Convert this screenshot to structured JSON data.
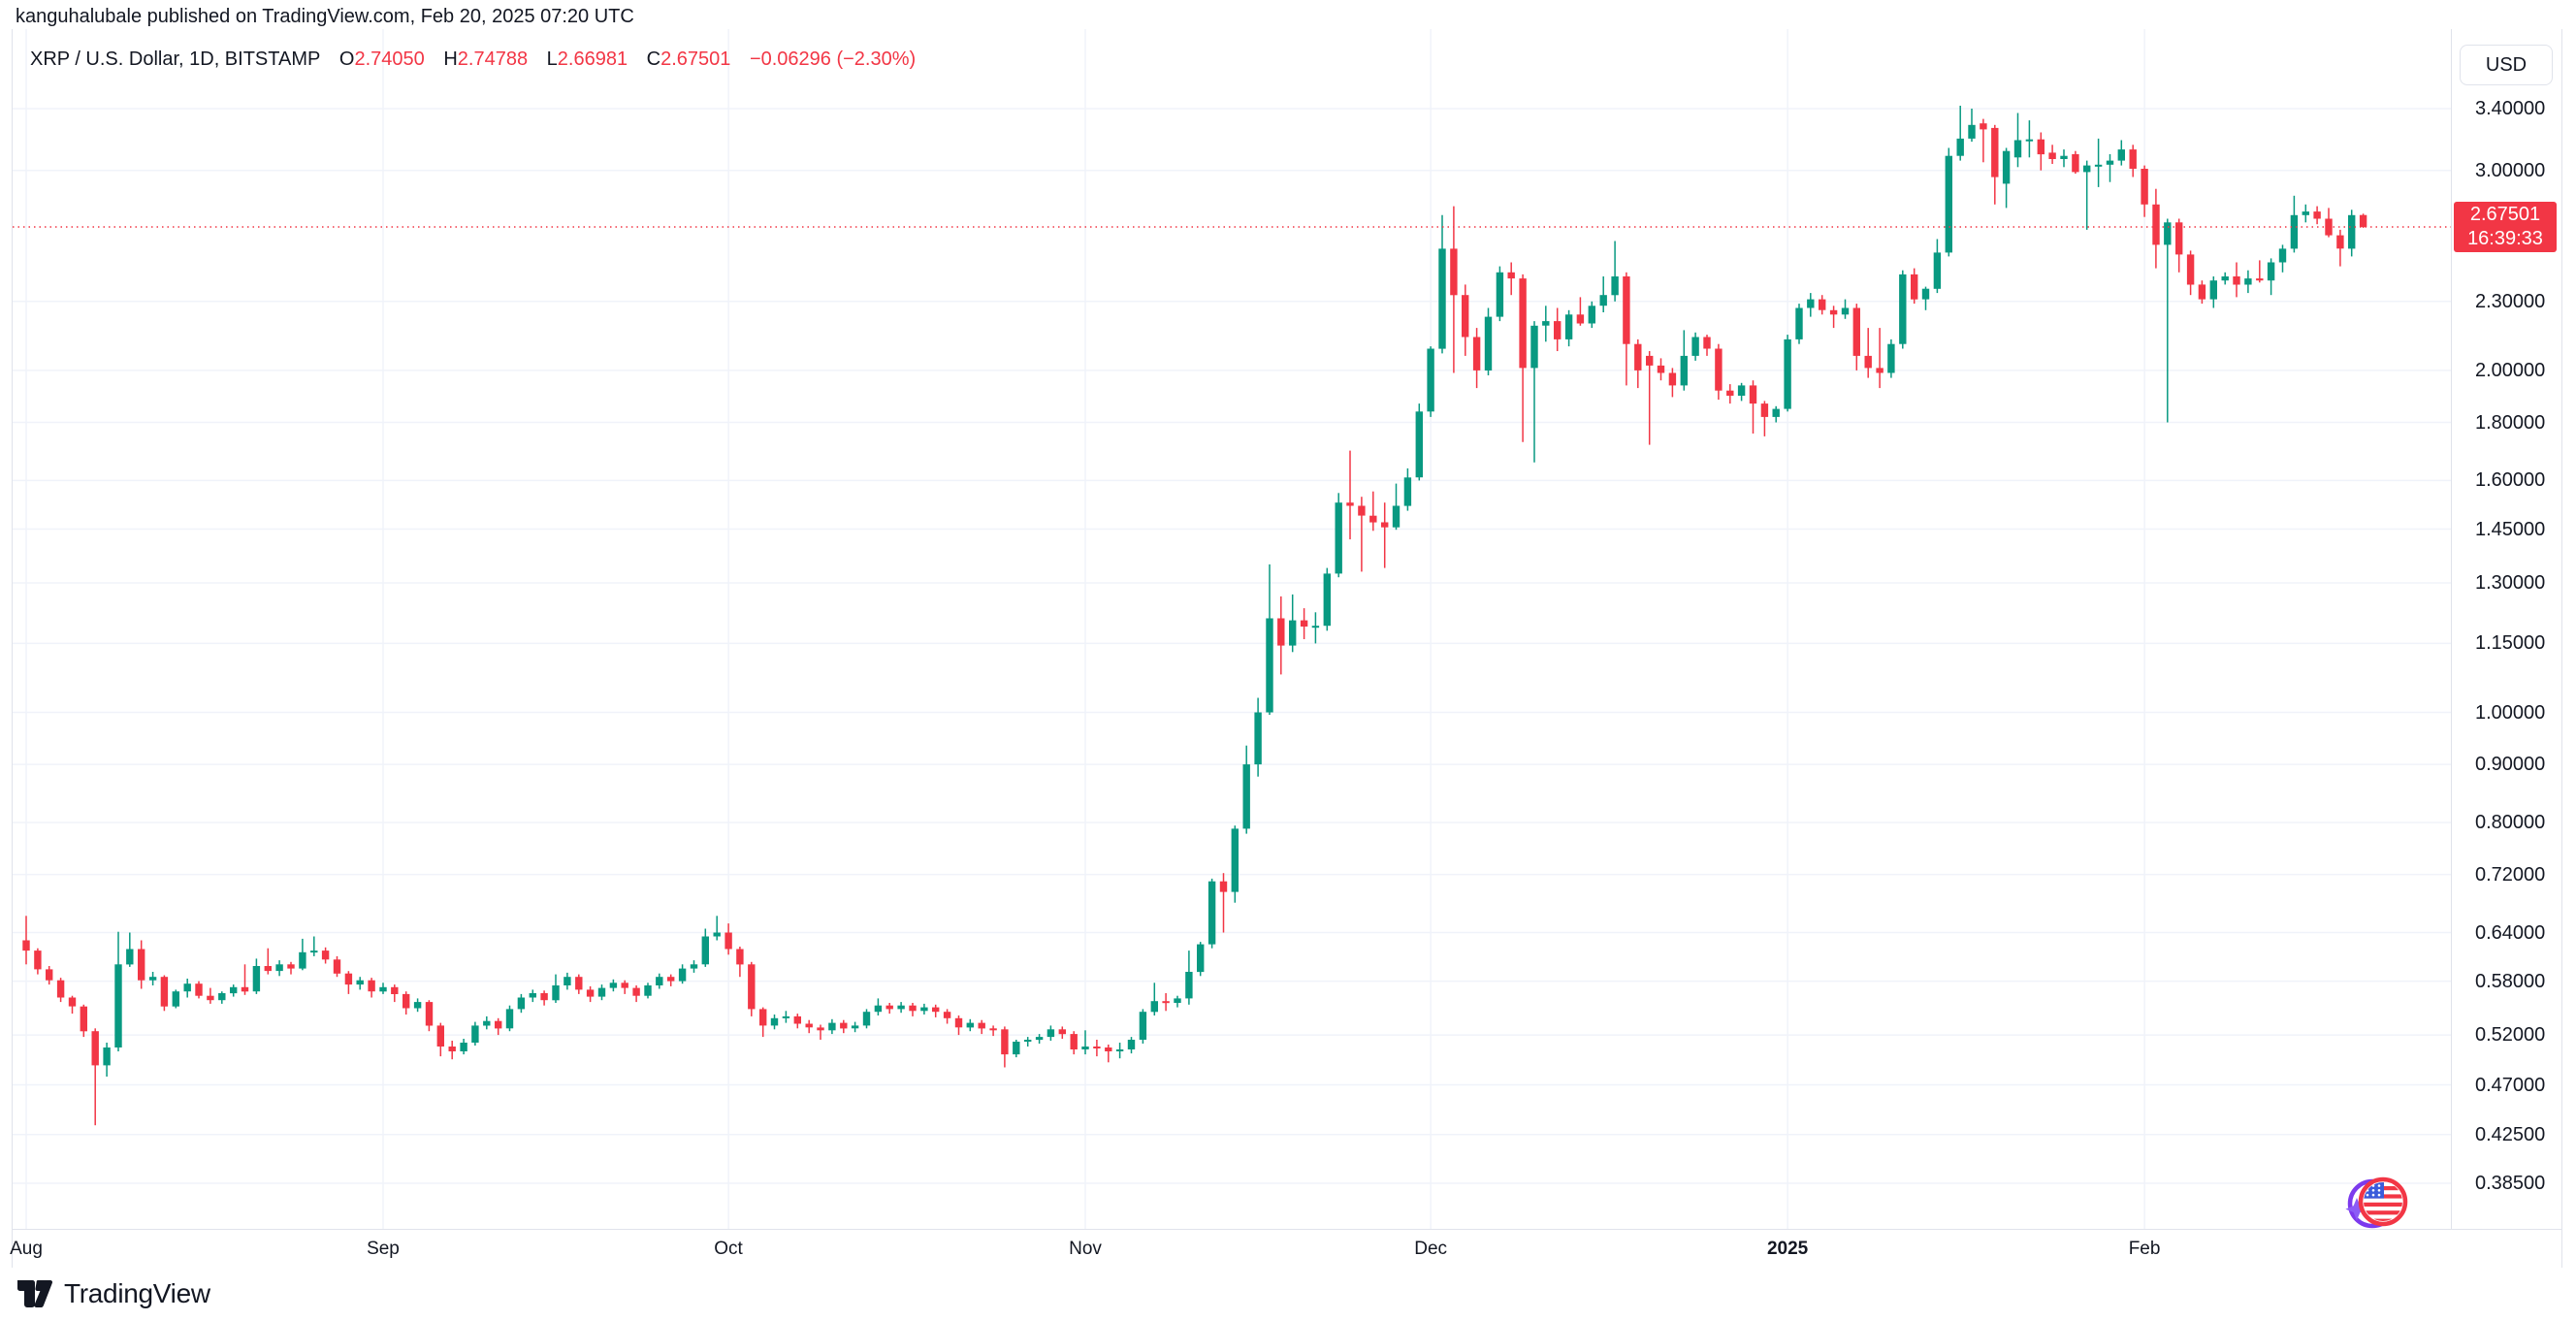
{
  "header": {
    "attribution": "kanguhalubale published on TradingView.com, Feb 20, 2025 07:20 UTC"
  },
  "chart_header": {
    "symbol_title": "XRP / U.S. Dollar, 1D, BITSTAMP",
    "open_label": "O",
    "open": "2.74050",
    "high_label": "H",
    "high": "2.74788",
    "low_label": "L",
    "low": "2.66981",
    "close_label": "C",
    "close": "2.67501",
    "change": "−0.06296 (−2.30%)"
  },
  "price_axis": {
    "currency_label": "USD",
    "tick_labels": [
      "3.40000",
      "3.00000",
      "2.30000",
      "2.00000",
      "1.80000",
      "1.60000",
      "1.45000",
      "1.30000",
      "1.15000",
      "1.00000",
      "0.90000",
      "0.80000",
      "0.72000",
      "0.64000",
      "0.58000",
      "0.52000",
      "0.47000",
      "0.42500",
      "0.38500"
    ],
    "badge": {
      "price": "2.67501",
      "countdown": "16:39:33"
    }
  },
  "time_axis": {
    "labels": [
      {
        "text": "Aug",
        "day": 0,
        "bold": false
      },
      {
        "text": "Sep",
        "day": 31,
        "bold": false
      },
      {
        "text": "Oct",
        "day": 61,
        "bold": false
      },
      {
        "text": "Nov",
        "day": 92,
        "bold": false
      },
      {
        "text": "Dec",
        "day": 122,
        "bold": false
      },
      {
        "text": "2025",
        "day": 153,
        "bold": true
      },
      {
        "text": "Feb",
        "day": 184,
        "bold": false
      }
    ]
  },
  "footer": {
    "brand": "TradingView"
  },
  "chart_data": {
    "type": "candlestick",
    "title": "XRP / U.S. Dollar, 1D, BITSTAMP",
    "symbol": "XRP/USD",
    "interval": "1D",
    "exchange": "BITSTAMP",
    "price_scale": "log",
    "start_month": "Aug 2024",
    "end_date": "Feb 20, 2025",
    "up_color": "#089981",
    "down_color": "#f23645",
    "grid_color": "#f0f3fa",
    "last_price": 2.67501,
    "y_ticks": [
      3.4,
      3.0,
      2.3,
      2.0,
      1.8,
      1.6,
      1.45,
      1.3,
      1.15,
      1.0,
      0.9,
      0.8,
      0.72,
      0.64,
      0.58,
      0.52,
      0.47,
      0.425,
      0.385
    ],
    "ohlc_last": {
      "open": 2.7405,
      "high": 2.74788,
      "low": 2.66981,
      "close": 2.67501
    },
    "candles": [
      [
        0.63,
        0.662,
        0.6,
        0.617
      ],
      [
        0.617,
        0.62,
        0.588,
        0.594
      ],
      [
        0.594,
        0.598,
        0.576,
        0.581
      ],
      [
        0.581,
        0.584,
        0.556,
        0.561
      ],
      [
        0.561,
        0.563,
        0.543,
        0.551
      ],
      [
        0.551,
        0.553,
        0.518,
        0.524
      ],
      [
        0.524,
        0.527,
        0.433,
        0.489
      ],
      [
        0.489,
        0.512,
        0.478,
        0.507
      ],
      [
        0.507,
        0.641,
        0.503,
        0.6
      ],
      [
        0.6,
        0.64,
        0.597,
        0.619
      ],
      [
        0.619,
        0.63,
        0.571,
        0.581
      ],
      [
        0.581,
        0.591,
        0.575,
        0.585
      ],
      [
        0.585,
        0.587,
        0.546,
        0.551
      ],
      [
        0.551,
        0.57,
        0.549,
        0.568
      ],
      [
        0.568,
        0.583,
        0.561,
        0.577
      ],
      [
        0.577,
        0.58,
        0.56,
        0.563
      ],
      [
        0.563,
        0.572,
        0.554,
        0.558
      ],
      [
        0.558,
        0.568,
        0.554,
        0.566
      ],
      [
        0.566,
        0.576,
        0.562,
        0.573
      ],
      [
        0.573,
        0.6,
        0.564,
        0.568
      ],
      [
        0.568,
        0.607,
        0.565,
        0.598
      ],
      [
        0.598,
        0.62,
        0.588,
        0.592
      ],
      [
        0.592,
        0.605,
        0.586,
        0.6
      ],
      [
        0.6,
        0.603,
        0.588,
        0.595
      ],
      [
        0.595,
        0.632,
        0.593,
        0.615
      ],
      [
        0.615,
        0.635,
        0.61,
        0.617
      ],
      [
        0.617,
        0.621,
        0.601,
        0.606
      ],
      [
        0.606,
        0.61,
        0.585,
        0.589
      ],
      [
        0.589,
        0.592,
        0.565,
        0.576
      ],
      [
        0.576,
        0.585,
        0.57,
        0.581
      ],
      [
        0.581,
        0.584,
        0.561,
        0.568
      ],
      [
        0.568,
        0.578,
        0.565,
        0.573
      ],
      [
        0.573,
        0.576,
        0.556,
        0.565
      ],
      [
        0.565,
        0.568,
        0.542,
        0.549
      ],
      [
        0.549,
        0.56,
        0.545,
        0.556
      ],
      [
        0.556,
        0.558,
        0.524,
        0.53
      ],
      [
        0.53,
        0.533,
        0.498,
        0.508
      ],
      [
        0.508,
        0.514,
        0.495,
        0.503
      ],
      [
        0.503,
        0.516,
        0.5,
        0.512
      ],
      [
        0.512,
        0.534,
        0.509,
        0.53
      ],
      [
        0.53,
        0.54,
        0.526,
        0.535
      ],
      [
        0.535,
        0.538,
        0.52,
        0.527
      ],
      [
        0.527,
        0.552,
        0.524,
        0.548
      ],
      [
        0.548,
        0.565,
        0.544,
        0.561
      ],
      [
        0.561,
        0.57,
        0.556,
        0.566
      ],
      [
        0.566,
        0.569,
        0.552,
        0.558
      ],
      [
        0.558,
        0.588,
        0.555,
        0.575
      ],
      [
        0.575,
        0.59,
        0.57,
        0.585
      ],
      [
        0.585,
        0.588,
        0.565,
        0.57
      ],
      [
        0.57,
        0.574,
        0.556,
        0.562
      ],
      [
        0.562,
        0.576,
        0.558,
        0.572
      ],
      [
        0.572,
        0.582,
        0.568,
        0.578
      ],
      [
        0.578,
        0.581,
        0.565,
        0.572
      ],
      [
        0.572,
        0.575,
        0.556,
        0.563
      ],
      [
        0.563,
        0.578,
        0.56,
        0.575
      ],
      [
        0.575,
        0.589,
        0.571,
        0.585
      ],
      [
        0.585,
        0.588,
        0.574,
        0.58
      ],
      [
        0.58,
        0.6,
        0.577,
        0.595
      ],
      [
        0.595,
        0.605,
        0.59,
        0.6
      ],
      [
        0.6,
        0.645,
        0.597,
        0.635
      ],
      [
        0.635,
        0.662,
        0.63,
        0.64
      ],
      [
        0.64,
        0.652,
        0.612,
        0.619
      ],
      [
        0.619,
        0.622,
        0.585,
        0.6
      ],
      [
        0.6,
        0.603,
        0.54,
        0.548
      ],
      [
        0.548,
        0.55,
        0.518,
        0.53
      ],
      [
        0.53,
        0.542,
        0.526,
        0.538
      ],
      [
        0.538,
        0.546,
        0.533,
        0.54
      ],
      [
        0.54,
        0.543,
        0.527,
        0.532
      ],
      [
        0.532,
        0.536,
        0.522,
        0.528
      ],
      [
        0.528,
        0.531,
        0.515,
        0.525
      ],
      [
        0.525,
        0.537,
        0.521,
        0.533
      ],
      [
        0.533,
        0.536,
        0.522,
        0.527
      ],
      [
        0.527,
        0.534,
        0.523,
        0.53
      ],
      [
        0.53,
        0.548,
        0.527,
        0.545
      ],
      [
        0.545,
        0.56,
        0.541,
        0.552
      ],
      [
        0.552,
        0.555,
        0.543,
        0.548
      ],
      [
        0.548,
        0.556,
        0.544,
        0.552
      ],
      [
        0.552,
        0.555,
        0.54,
        0.546
      ],
      [
        0.546,
        0.554,
        0.542,
        0.55
      ],
      [
        0.55,
        0.553,
        0.539,
        0.545
      ],
      [
        0.545,
        0.548,
        0.532,
        0.538
      ],
      [
        0.538,
        0.541,
        0.52,
        0.528
      ],
      [
        0.528,
        0.537,
        0.524,
        0.533
      ],
      [
        0.533,
        0.536,
        0.521,
        0.527
      ],
      [
        0.527,
        0.53,
        0.519,
        0.526
      ],
      [
        0.526,
        0.529,
        0.487,
        0.5
      ],
      [
        0.5,
        0.515,
        0.497,
        0.513
      ],
      [
        0.513,
        0.518,
        0.508,
        0.515
      ],
      [
        0.515,
        0.521,
        0.511,
        0.518
      ],
      [
        0.518,
        0.53,
        0.514,
        0.526
      ],
      [
        0.526,
        0.529,
        0.516,
        0.521
      ],
      [
        0.521,
        0.524,
        0.5,
        0.505
      ],
      [
        0.505,
        0.525,
        0.5,
        0.508
      ],
      [
        0.508,
        0.515,
        0.498,
        0.507
      ],
      [
        0.507,
        0.51,
        0.492,
        0.503
      ],
      [
        0.503,
        0.512,
        0.496,
        0.505
      ],
      [
        0.505,
        0.518,
        0.501,
        0.515
      ],
      [
        0.515,
        0.548,
        0.511,
        0.545
      ],
      [
        0.545,
        0.578,
        0.541,
        0.557
      ],
      [
        0.557,
        0.566,
        0.546,
        0.555
      ],
      [
        0.555,
        0.563,
        0.55,
        0.56
      ],
      [
        0.56,
        0.617,
        0.553,
        0.591
      ],
      [
        0.591,
        0.628,
        0.586,
        0.625
      ],
      [
        0.625,
        0.714,
        0.62,
        0.71
      ],
      [
        0.71,
        0.722,
        0.64,
        0.695
      ],
      [
        0.695,
        0.795,
        0.68,
        0.79
      ],
      [
        0.79,
        0.935,
        0.782,
        0.9
      ],
      [
        0.9,
        1.03,
        0.878,
        1.0
      ],
      [
        1.0,
        1.35,
        0.995,
        1.21
      ],
      [
        1.21,
        1.265,
        1.08,
        1.145
      ],
      [
        1.145,
        1.27,
        1.13,
        1.205
      ],
      [
        1.205,
        1.235,
        1.16,
        1.19
      ],
      [
        1.19,
        1.225,
        1.15,
        1.192
      ],
      [
        1.192,
        1.34,
        1.18,
        1.325
      ],
      [
        1.325,
        1.56,
        1.315,
        1.53
      ],
      [
        1.53,
        1.7,
        1.42,
        1.52
      ],
      [
        1.52,
        1.548,
        1.33,
        1.49
      ],
      [
        1.49,
        1.565,
        1.445,
        1.47
      ],
      [
        1.47,
        1.53,
        1.34,
        1.455
      ],
      [
        1.455,
        1.59,
        1.448,
        1.52
      ],
      [
        1.52,
        1.64,
        1.505,
        1.61
      ],
      [
        1.61,
        1.87,
        1.6,
        1.84
      ],
      [
        1.84,
        2.1,
        1.82,
        2.09
      ],
      [
        2.09,
        2.74,
        2.07,
        2.56
      ],
      [
        2.56,
        2.79,
        1.99,
        2.33
      ],
      [
        2.33,
        2.38,
        2.06,
        2.14
      ],
      [
        2.14,
        2.18,
        1.93,
        2.0
      ],
      [
        2.0,
        2.27,
        1.98,
        2.23
      ],
      [
        2.23,
        2.47,
        2.21,
        2.44
      ],
      [
        2.44,
        2.49,
        2.33,
        2.41
      ],
      [
        2.41,
        2.43,
        1.73,
        2.01
      ],
      [
        2.01,
        2.21,
        1.66,
        2.19
      ],
      [
        2.19,
        2.28,
        2.12,
        2.21
      ],
      [
        2.21,
        2.27,
        2.08,
        2.13
      ],
      [
        2.13,
        2.26,
        2.1,
        2.24
      ],
      [
        2.24,
        2.32,
        2.19,
        2.2
      ],
      [
        2.2,
        2.3,
        2.18,
        2.28
      ],
      [
        2.28,
        2.42,
        2.25,
        2.33
      ],
      [
        2.33,
        2.6,
        2.3,
        2.42
      ],
      [
        2.42,
        2.44,
        1.94,
        2.11
      ],
      [
        2.11,
        2.13,
        1.93,
        2.0
      ],
      [
        2.06,
        2.08,
        1.72,
        2.02
      ],
      [
        2.02,
        2.05,
        1.96,
        1.99
      ],
      [
        1.99,
        2.01,
        1.895,
        1.94
      ],
      [
        1.94,
        2.17,
        1.92,
        2.06
      ],
      [
        2.06,
        2.16,
        2.04,
        2.14
      ],
      [
        2.14,
        2.15,
        2.06,
        2.09
      ],
      [
        2.09,
        2.11,
        1.885,
        1.92
      ],
      [
        1.92,
        1.945,
        1.87,
        1.9
      ],
      [
        1.9,
        1.95,
        1.88,
        1.94
      ],
      [
        1.94,
        1.96,
        1.76,
        1.87
      ],
      [
        1.87,
        1.88,
        1.75,
        1.82
      ],
      [
        1.82,
        1.86,
        1.8,
        1.85
      ],
      [
        1.85,
        2.15,
        1.84,
        2.13
      ],
      [
        2.13,
        2.29,
        2.11,
        2.27
      ],
      [
        2.27,
        2.34,
        2.23,
        2.31
      ],
      [
        2.31,
        2.33,
        2.24,
        2.26
      ],
      [
        2.26,
        2.28,
        2.18,
        2.24
      ],
      [
        2.24,
        2.31,
        2.22,
        2.27
      ],
      [
        2.27,
        2.29,
        2.0,
        2.06
      ],
      [
        2.06,
        2.18,
        1.97,
        2.01
      ],
      [
        2.01,
        2.18,
        1.93,
        1.99
      ],
      [
        1.99,
        2.13,
        1.97,
        2.11
      ],
      [
        2.11,
        2.45,
        2.09,
        2.43
      ],
      [
        2.43,
        2.46,
        2.29,
        2.31
      ],
      [
        2.31,
        2.37,
        2.26,
        2.36
      ],
      [
        2.36,
        2.61,
        2.34,
        2.54
      ],
      [
        2.54,
        3.14,
        2.52,
        3.09
      ],
      [
        3.09,
        3.42,
        3.06,
        3.2
      ],
      [
        3.2,
        3.4,
        3.18,
        3.29
      ],
      [
        3.3,
        3.33,
        3.05,
        3.26
      ],
      [
        3.27,
        3.29,
        2.8,
        2.96
      ],
      [
        2.92,
        3.14,
        2.78,
        3.12
      ],
      [
        3.08,
        3.37,
        3.02,
        3.19
      ],
      [
        3.19,
        3.32,
        3.08,
        3.195
      ],
      [
        3.195,
        3.24,
        3.0,
        3.1
      ],
      [
        3.11,
        3.16,
        3.04,
        3.07
      ],
      [
        3.07,
        3.13,
        3.02,
        3.09
      ],
      [
        3.1,
        3.12,
        2.98,
        2.99
      ],
      [
        2.99,
        3.06,
        2.66,
        3.03
      ],
      [
        3.03,
        3.2,
        2.9,
        3.035
      ],
      [
        3.035,
        3.1,
        2.93,
        3.06
      ],
      [
        3.06,
        3.19,
        3.03,
        3.13
      ],
      [
        3.13,
        3.16,
        2.96,
        3.01
      ],
      [
        3.01,
        3.03,
        2.73,
        2.8
      ],
      [
        2.8,
        2.89,
        2.46,
        2.58
      ],
      [
        2.58,
        2.72,
        1.8,
        2.7
      ],
      [
        2.7,
        2.72,
        2.44,
        2.53
      ],
      [
        2.53,
        2.55,
        2.33,
        2.38
      ],
      [
        2.38,
        2.4,
        2.29,
        2.31
      ],
      [
        2.31,
        2.42,
        2.27,
        2.4
      ],
      [
        2.4,
        2.44,
        2.38,
        2.42
      ],
      [
        2.42,
        2.49,
        2.32,
        2.38
      ],
      [
        2.38,
        2.45,
        2.34,
        2.41
      ],
      [
        2.41,
        2.5,
        2.39,
        2.4
      ],
      [
        2.4,
        2.51,
        2.33,
        2.49
      ],
      [
        2.49,
        2.58,
        2.44,
        2.56
      ],
      [
        2.56,
        2.85,
        2.54,
        2.74
      ],
      [
        2.74,
        2.8,
        2.7,
        2.76
      ],
      [
        2.76,
        2.79,
        2.69,
        2.72
      ],
      [
        2.72,
        2.78,
        2.62,
        2.63
      ],
      [
        2.63,
        2.66,
        2.47,
        2.56
      ],
      [
        2.56,
        2.77,
        2.52,
        2.74
      ],
      [
        2.7405,
        2.74788,
        2.66981,
        2.67501
      ]
    ]
  }
}
